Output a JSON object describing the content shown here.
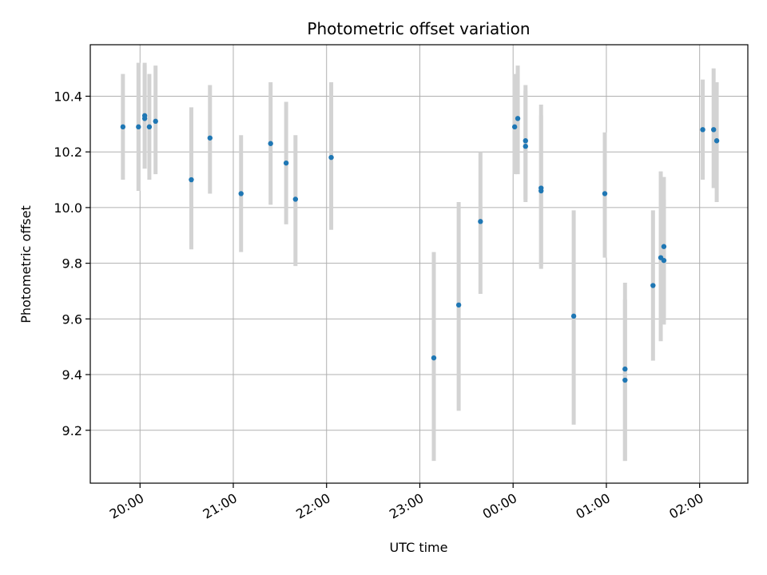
{
  "chart_data": {
    "type": "scatter",
    "title": "Photometric offset variation",
    "xlabel": "UTC time",
    "ylabel": "Photometric offset",
    "x_axis_kind": "time",
    "x_start": "19:28",
    "x_end": "02:31",
    "x_ticks": [
      "20:00",
      "21:00",
      "22:00",
      "23:00",
      "00:00",
      "01:00",
      "02:00"
    ],
    "ylim": [
      9.01,
      10.585
    ],
    "y_ticks": [
      9.2,
      9.4,
      9.6,
      9.8,
      10.0,
      10.2,
      10.4
    ],
    "grid": true,
    "colors": {
      "point": "#1f77b4",
      "errorbar": "#d3d3d3",
      "grid": "#b0b0b0"
    },
    "points": [
      {
        "x": "19:49",
        "y": 10.29,
        "err_low": 10.1,
        "err_high": 10.48
      },
      {
        "x": "19:59",
        "y": 10.29,
        "err_low": 10.06,
        "err_high": 10.52
      },
      {
        "x": "20:03",
        "y": 10.33,
        "err_low": 10.14,
        "err_high": 10.52
      },
      {
        "x": "20:03",
        "y": 10.32,
        "err_low": 10.14,
        "err_high": 10.51
      },
      {
        "x": "20:06",
        "y": 10.29,
        "err_low": 10.1,
        "err_high": 10.48
      },
      {
        "x": "20:10",
        "y": 10.31,
        "err_low": 10.12,
        "err_high": 10.51
      },
      {
        "x": "20:33",
        "y": 10.1,
        "err_low": 9.85,
        "err_high": 10.36
      },
      {
        "x": "20:45",
        "y": 10.25,
        "err_low": 10.05,
        "err_high": 10.44
      },
      {
        "x": "21:05",
        "y": 10.05,
        "err_low": 9.84,
        "err_high": 10.26
      },
      {
        "x": "21:24",
        "y": 10.23,
        "err_low": 10.01,
        "err_high": 10.45
      },
      {
        "x": "21:34",
        "y": 10.16,
        "err_low": 9.94,
        "err_high": 10.38
      },
      {
        "x": "21:40",
        "y": 10.03,
        "err_low": 9.79,
        "err_high": 10.26
      },
      {
        "x": "22:03",
        "y": 10.18,
        "err_low": 9.92,
        "err_high": 10.45
      },
      {
        "x": "23:09",
        "y": 9.46,
        "err_low": 9.09,
        "err_high": 9.84
      },
      {
        "x": "23:25",
        "y": 9.65,
        "err_low": 9.27,
        "err_high": 10.02
      },
      {
        "x": "23:39",
        "y": 9.95,
        "err_low": 9.69,
        "err_high": 10.2
      },
      {
        "x": "00:01",
        "y": 10.29,
        "err_low": 10.12,
        "err_high": 10.48
      },
      {
        "x": "00:03",
        "y": 10.32,
        "err_low": 10.12,
        "err_high": 10.51
      },
      {
        "x": "00:08",
        "y": 10.22,
        "err_low": 10.02,
        "err_high": 10.42
      },
      {
        "x": "00:08",
        "y": 10.24,
        "err_low": 10.03,
        "err_high": 10.44
      },
      {
        "x": "00:18",
        "y": 10.06,
        "err_low": 9.79,
        "err_high": 10.33
      },
      {
        "x": "00:18",
        "y": 10.07,
        "err_low": 9.78,
        "err_high": 10.37
      },
      {
        "x": "00:39",
        "y": 9.61,
        "err_low": 9.22,
        "err_high": 9.99
      },
      {
        "x": "00:59",
        "y": 10.05,
        "err_low": 9.82,
        "err_high": 10.27
      },
      {
        "x": "01:12",
        "y": 9.42,
        "err_low": 9.09,
        "err_high": 9.73
      },
      {
        "x": "01:12",
        "y": 9.38,
        "err_low": 9.09,
        "err_high": 9.67
      },
      {
        "x": "01:30",
        "y": 9.72,
        "err_low": 9.45,
        "err_high": 9.99
      },
      {
        "x": "01:35",
        "y": 9.82,
        "err_low": 9.52,
        "err_high": 10.13
      },
      {
        "x": "01:37",
        "y": 9.86,
        "err_low": 9.59,
        "err_high": 10.11
      },
      {
        "x": "01:37",
        "y": 9.81,
        "err_low": 9.58,
        "err_high": 10.03
      },
      {
        "x": "02:02",
        "y": 10.28,
        "err_low": 10.1,
        "err_high": 10.46
      },
      {
        "x": "02:09",
        "y": 10.28,
        "err_low": 10.07,
        "err_high": 10.5
      },
      {
        "x": "02:11",
        "y": 10.24,
        "err_low": 10.02,
        "err_high": 10.45
      }
    ]
  }
}
